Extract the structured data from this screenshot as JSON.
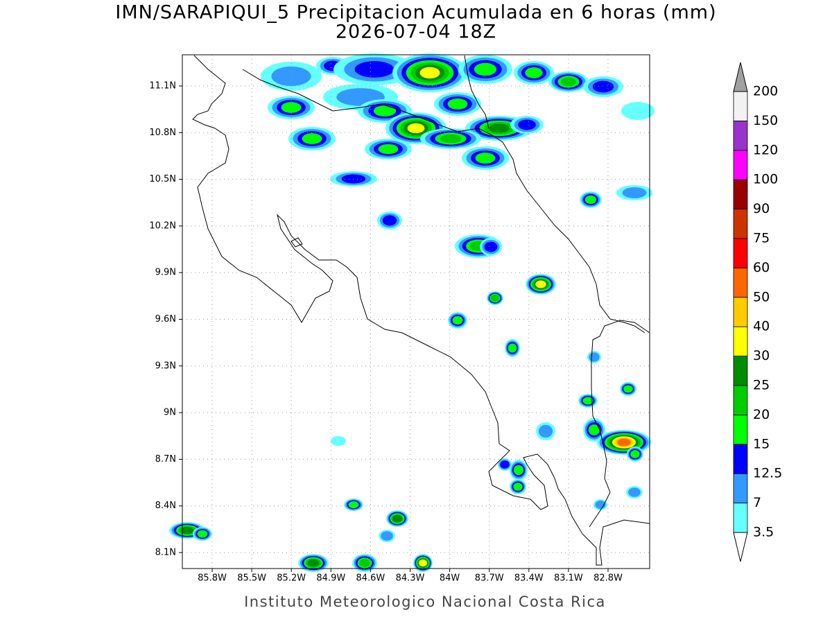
{
  "title": "IMN/SARAPIQUI_5 Precipitacion Acumulada en 6 horas (mm)",
  "subtitle": "2026-07-04 18Z",
  "map": {
    "lon_labels": [
      "85.8W",
      "85.5W",
      "85.2W",
      "84.9W",
      "84.6W",
      "84.3W",
      "84W",
      "83.7W",
      "83.4W",
      "83.1W",
      "82.8W"
    ],
    "lat_labels": [
      "11.1N",
      "10.8N",
      "10.5N",
      "10.2N",
      "9.9N",
      "9.6N",
      "9.3N",
      "9N",
      "8.7N",
      "8.4N",
      "8.1N"
    ]
  },
  "colorbar": {
    "levels": [
      3.5,
      7,
      12.5,
      15,
      20,
      25,
      30,
      40,
      50,
      60,
      75,
      90,
      100,
      120,
      150,
      200
    ],
    "colors": [
      "#66ffff",
      "#3399ff",
      "#0000ff",
      "#00ff00",
      "#00cc00",
      "#008c00",
      "#ffff00",
      "#ffcc00",
      "#ff6600",
      "#ff0000",
      "#cc3300",
      "#990000",
      "#ff00ff",
      "#9933cc",
      "#f2f2f2"
    ],
    "over_color": "#a0a0a0",
    "under_color": "#ffffff"
  },
  "footer": "Instituto Meteorologico Nacional Costa Rica"
}
